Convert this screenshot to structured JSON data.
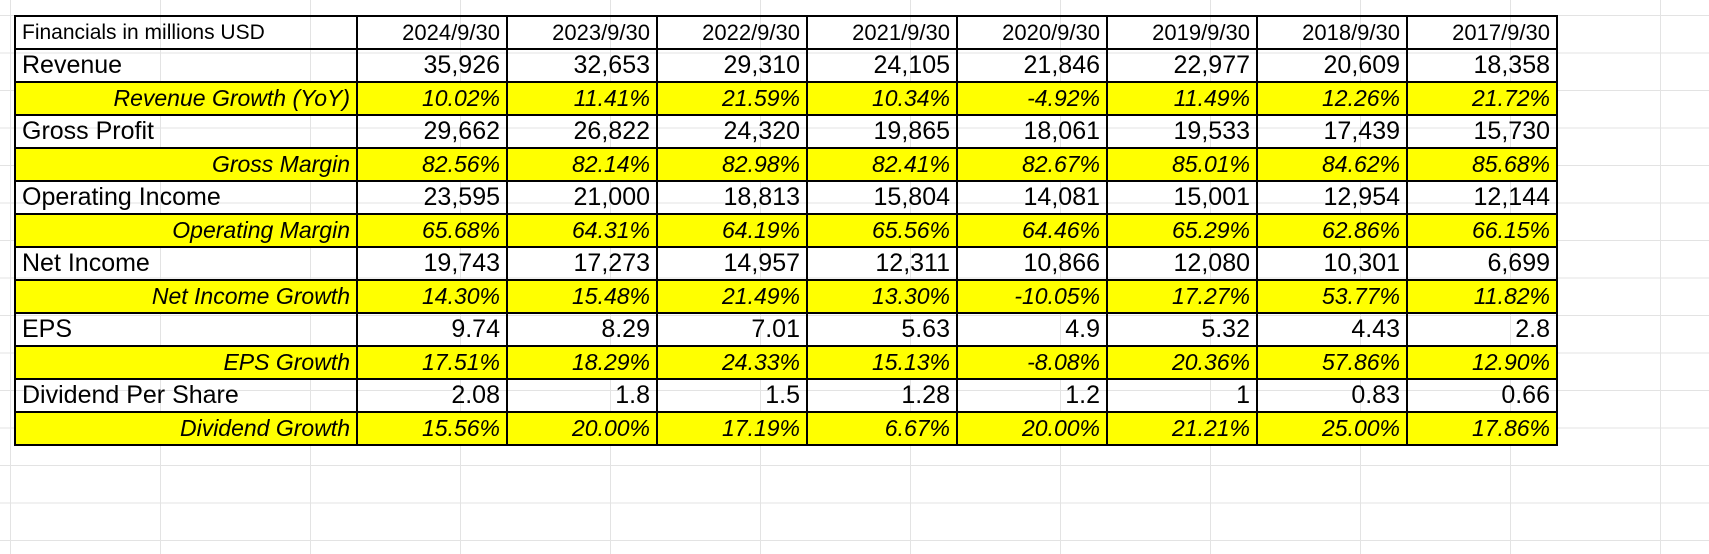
{
  "table": {
    "header_label": "Financials in millions USD",
    "years": [
      "2024/9/30",
      "2023/9/30",
      "2022/9/30",
      "2021/9/30",
      "2020/9/30",
      "2019/9/30",
      "2018/9/30",
      "2017/9/30"
    ],
    "rows": [
      {
        "label": "Revenue",
        "kind": "metric",
        "values": [
          "35,926",
          "32,653",
          "29,310",
          "24,105",
          "21,846",
          "22,977",
          "20,609",
          "18,358"
        ]
      },
      {
        "label": "Revenue Growth (YoY)",
        "kind": "pct",
        "values": [
          "10.02%",
          "11.41%",
          "21.59%",
          "10.34%",
          "-4.92%",
          "11.49%",
          "12.26%",
          "21.72%"
        ]
      },
      {
        "label": "Gross Profit",
        "kind": "metric",
        "values": [
          "29,662",
          "26,822",
          "24,320",
          "19,865",
          "18,061",
          "19,533",
          "17,439",
          "15,730"
        ]
      },
      {
        "label": "Gross Margin",
        "kind": "pct",
        "values": [
          "82.56%",
          "82.14%",
          "82.98%",
          "82.41%",
          "82.67%",
          "85.01%",
          "84.62%",
          "85.68%"
        ]
      },
      {
        "label": "Operating Income",
        "kind": "metric",
        "values": [
          "23,595",
          "21,000",
          "18,813",
          "15,804",
          "14,081",
          "15,001",
          "12,954",
          "12,144"
        ]
      },
      {
        "label": "Operating Margin",
        "kind": "pct",
        "values": [
          "65.68%",
          "64.31%",
          "64.19%",
          "65.56%",
          "64.46%",
          "65.29%",
          "62.86%",
          "66.15%"
        ]
      },
      {
        "label": "Net Income",
        "kind": "metric",
        "values": [
          "19,743",
          "17,273",
          "14,957",
          "12,311",
          "10,866",
          "12,080",
          "10,301",
          "6,699"
        ]
      },
      {
        "label": "Net Income Growth",
        "kind": "pct",
        "values": [
          "14.30%",
          "15.48%",
          "21.49%",
          "13.30%",
          "-10.05%",
          "17.27%",
          "53.77%",
          "11.82%"
        ]
      },
      {
        "label": "EPS",
        "kind": "metric",
        "values": [
          "9.74",
          "8.29",
          "7.01",
          "5.63",
          "4.9",
          "5.32",
          "4.43",
          "2.8"
        ]
      },
      {
        "label": "EPS Growth",
        "kind": "pct",
        "values": [
          "17.51%",
          "18.29%",
          "24.33%",
          "15.13%",
          "-8.08%",
          "20.36%",
          "57.86%",
          "12.90%"
        ]
      },
      {
        "label": "Dividend Per Share",
        "kind": "metric",
        "values": [
          "2.08",
          "1.8",
          "1.5",
          "1.28",
          "1.2",
          "1",
          "0.83",
          "0.66"
        ]
      },
      {
        "label": "Dividend Growth",
        "kind": "pct",
        "values": [
          "15.56%",
          "20.00%",
          "17.19%",
          "6.67%",
          "20.00%",
          "21.21%",
          "25.00%",
          "17.86%"
        ]
      }
    ]
  },
  "colors": {
    "highlight": "#ffff00",
    "border": "#000000",
    "gridline": "#e3e3e3"
  }
}
